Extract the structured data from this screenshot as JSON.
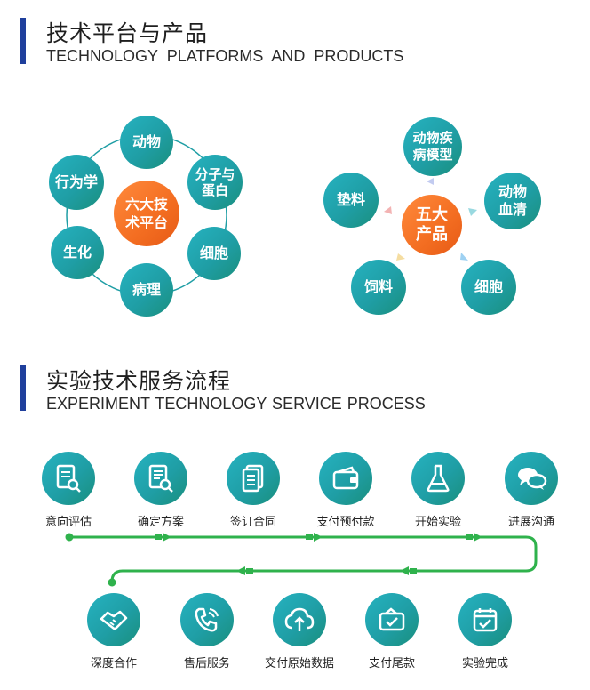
{
  "section1": {
    "title": "技术平台与产品",
    "subtitle": "TECHNOLOGY PLATFORMS AND PRODUCTS"
  },
  "platforms": {
    "hub": [
      "六大技",
      "术平台"
    ],
    "nodes": {
      "animal": [
        "动物"
      ],
      "molecular": [
        "分子与",
        "蛋白"
      ],
      "cell": [
        "细胞"
      ],
      "pathology": [
        "病理"
      ],
      "biochem": [
        "生化"
      ],
      "behavior": [
        "行为学"
      ]
    }
  },
  "products": {
    "hub": [
      "五大",
      "产品"
    ],
    "nodes": {
      "disease_model": [
        "动物疾",
        "病模型"
      ],
      "serum": [
        "动物",
        "血清"
      ],
      "cell": [
        "细胞"
      ],
      "feed": [
        "饲料"
      ],
      "bedding": [
        "垫料"
      ]
    }
  },
  "section2": {
    "title": "实验技术服务流程",
    "subtitle": "EXPERIMENT TECHNOLOGY SERVICE PROCESS"
  },
  "process": {
    "row1": [
      {
        "label": "意向评估",
        "icon": "document-search-icon"
      },
      {
        "label": "确定方案",
        "icon": "document-search-icon"
      },
      {
        "label": "签订合同",
        "icon": "documents-icon"
      },
      {
        "label": "支付预付款",
        "icon": "wallet-icon"
      },
      {
        "label": "开始实验",
        "icon": "flask-icon"
      },
      {
        "label": "进展沟通",
        "icon": "chat-bubbles-icon"
      }
    ],
    "row2": [
      {
        "label": "深度合作",
        "icon": "handshake-icon"
      },
      {
        "label": "售后服务",
        "icon": "phone-icon"
      },
      {
        "label": "交付原始数据",
        "icon": "cloud-upload-icon"
      },
      {
        "label": "支付尾款",
        "icon": "payment-card-icon"
      },
      {
        "label": "实验完成",
        "icon": "calendar-check-icon"
      }
    ]
  },
  "colors": {
    "accent_bar": "#1f3f9c",
    "teal": "#1f9ea5",
    "orange": "#f36d21",
    "flow_green": "#2fb24c"
  }
}
